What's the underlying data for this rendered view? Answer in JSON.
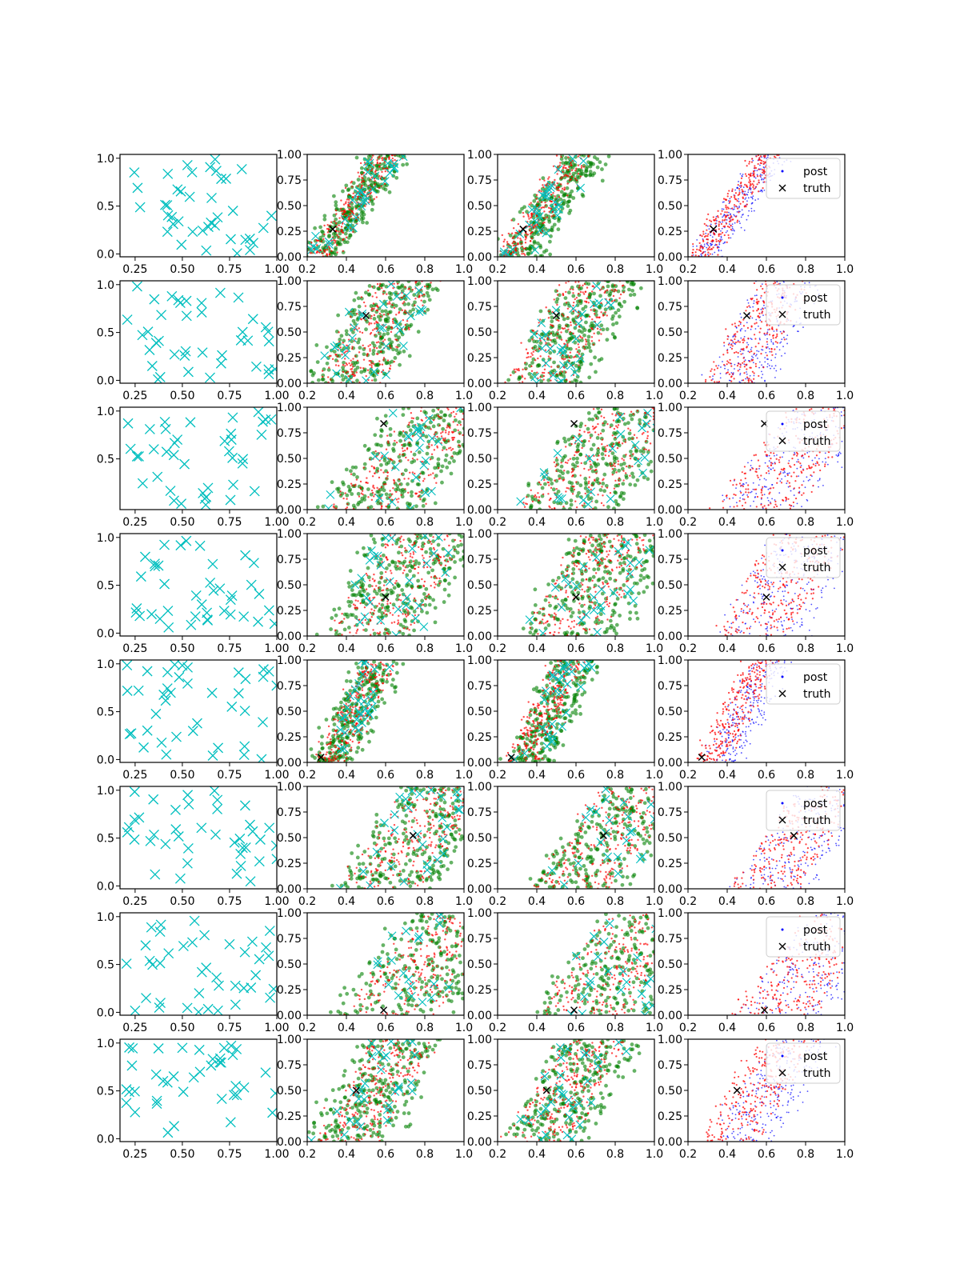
{
  "figure": {
    "rows": 8,
    "cols": 4,
    "description": "Grid of scatter panels: column 1 = observation samples, columns 2-3 = posterior sample clouds, column 4 = posterior vs truth",
    "colors": {
      "cyan": "#00bfbf",
      "red": "#ff0000",
      "green": "#008000",
      "blue": "#0000ff",
      "black": "#000000"
    }
  },
  "chart_data": {
    "type": "scatter",
    "col1": {
      "xlim": [
        0.17,
        1.0
      ],
      "ylim": [
        -0.03,
        1.04
      ],
      "xticks": [
        "0.25",
        "0.50",
        "0.75",
        "1.00"
      ],
      "xtick_values": [
        0.25,
        0.5,
        0.75,
        1.0
      ],
      "yticks": [
        "0.0",
        "0.5",
        "1.0"
      ],
      "ytick_values": [
        0.0,
        0.5,
        1.0
      ],
      "row3_yticks": [
        "0.5",
        "1.0"
      ],
      "row3_ytick_values": [
        0.5,
        1.0
      ],
      "marker": "x",
      "points_per_panel": 40
    },
    "post_axes": {
      "xlim": [
        0.2,
        1.0
      ],
      "ylim": [
        0.0,
        1.0
      ],
      "xticks": [
        "0.2",
        "0.4",
        "0.6",
        "0.8",
        "1.0"
      ],
      "xtick_values": [
        0.2,
        0.4,
        0.6,
        0.8,
        1.0
      ],
      "yticks": [
        "0.00",
        "0.25",
        "0.50",
        "0.75",
        "1.00"
      ],
      "ytick_values": [
        0.0,
        0.25,
        0.5,
        0.75,
        1.0
      ]
    },
    "legend": {
      "entries": [
        "post",
        "truth"
      ],
      "location": "upper right"
    },
    "truth": [
      [
        0.33,
        0.27
      ],
      [
        0.5,
        0.66
      ],
      [
        0.59,
        0.84
      ],
      [
        0.6,
        0.38
      ],
      [
        0.27,
        0.05
      ],
      [
        0.74,
        0.52
      ],
      [
        0.59,
        0.05
      ],
      [
        0.45,
        0.5
      ]
    ],
    "clouds": [
      {
        "c": 0.26,
        "s": 0.35,
        "w": 0.18,
        "red_off": 0.03
      },
      {
        "c": 0.4,
        "s": 0.3,
        "w": 0.4,
        "red_off": 0.04
      },
      {
        "c": 0.52,
        "s": 0.4,
        "w": 0.55,
        "red_off": 0.05
      },
      {
        "c": 0.52,
        "s": 0.3,
        "w": 0.5,
        "red_off": 0.05
      },
      {
        "c": 0.32,
        "s": 0.25,
        "w": 0.2,
        "red_off": 0.06
      },
      {
        "c": 0.58,
        "s": 0.35,
        "w": 0.5,
        "red_off": 0.05
      },
      {
        "c": 0.62,
        "s": 0.4,
        "w": 0.6,
        "red_off": 0.05
      },
      {
        "c": 0.4,
        "s": 0.3,
        "w": 0.4,
        "red_off": 0.08
      }
    ]
  }
}
